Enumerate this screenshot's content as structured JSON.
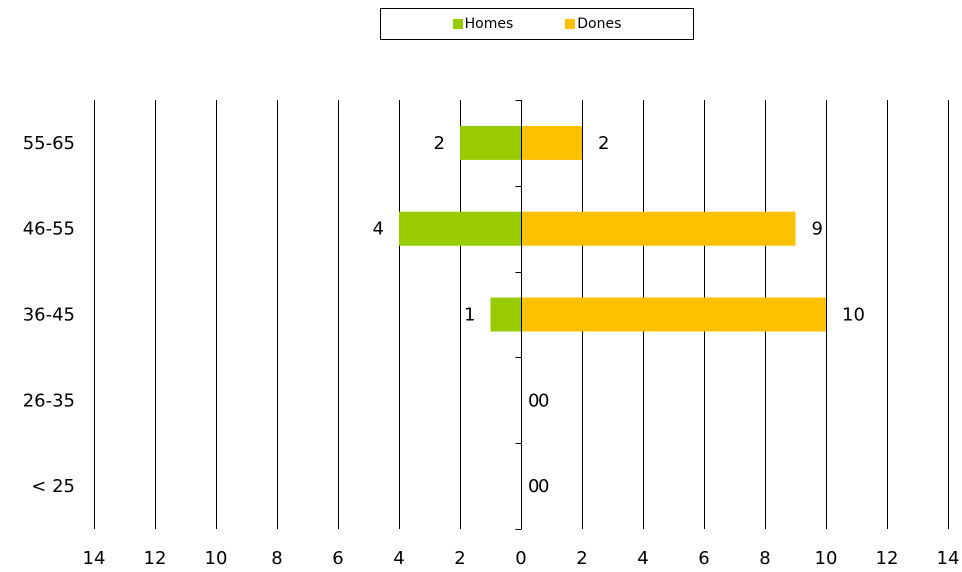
{
  "chart_data": {
    "type": "bar",
    "orientation": "horizontal",
    "layout": "population-pyramid",
    "categories": [
      "55-65",
      "46-55",
      "36-45",
      "26-35",
      "< 25"
    ],
    "series": [
      {
        "name": "Homes",
        "color": "#99CC00",
        "side": "left",
        "values": [
          2,
          4,
          1,
          0,
          0
        ],
        "value_labels": [
          "2",
          "4",
          "1",
          "0",
          "0"
        ]
      },
      {
        "name": "Dones",
        "color": "#FFC000",
        "side": "right",
        "values": [
          2,
          9,
          10,
          0,
          0
        ],
        "value_labels": [
          "2",
          "9",
          "10",
          "0",
          "0"
        ]
      }
    ],
    "x_range": [
      -14,
      14
    ],
    "x_tick_labels": [
      "14",
      "12",
      "10",
      "8",
      "6",
      "4",
      "2",
      "0",
      "2",
      "4",
      "6",
      "8",
      "10",
      "12",
      "14"
    ],
    "grid": "vertical",
    "legend": "top-center",
    "title": "",
    "xlabel": "",
    "ylabel": ""
  }
}
